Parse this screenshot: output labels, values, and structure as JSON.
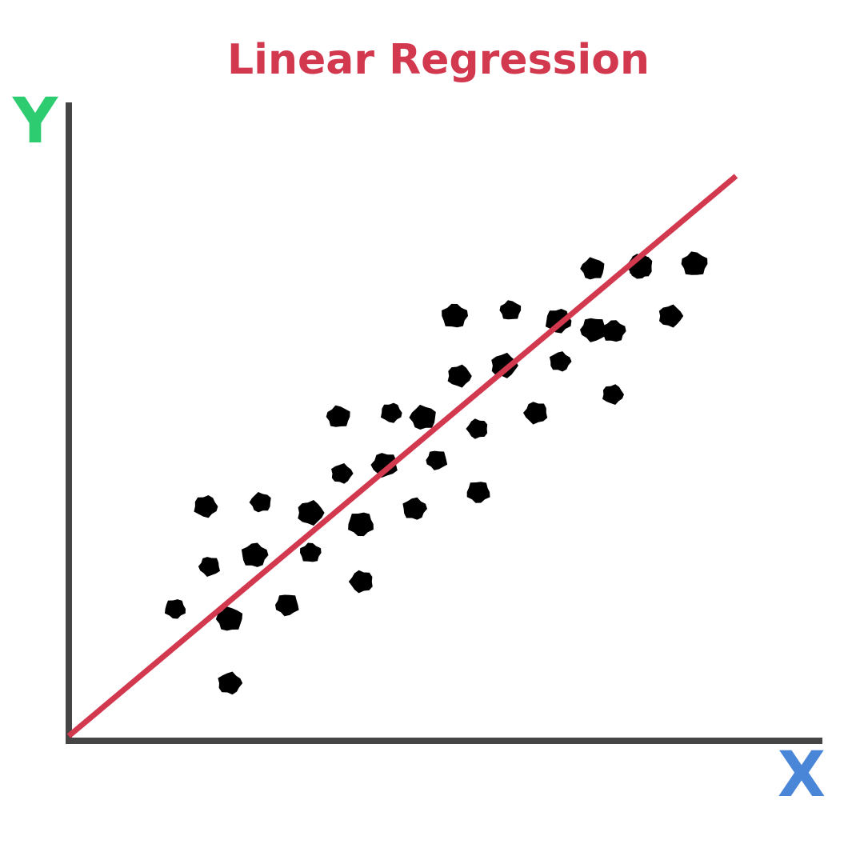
{
  "colors": {
    "title": "#d2384e",
    "regression_line": "#d2384e",
    "axis": "#454545",
    "x_label": "#4a86d8",
    "y_label": "#2ecc71",
    "points": "#000000"
  },
  "chart_data": {
    "type": "scatter",
    "title": "Linear Regression",
    "xlabel": "X",
    "ylabel": "Y",
    "xlim": [
      0,
      1000
    ],
    "ylim": [
      0,
      800
    ],
    "grid": false,
    "legend": "none",
    "regression_line": {
      "start": [
        0,
        6
      ],
      "end": [
        834,
        706
      ]
    },
    "points": [
      {
        "x": 133,
        "y": 165
      },
      {
        "x": 201,
        "y": 72
      },
      {
        "x": 201,
        "y": 152
      },
      {
        "x": 176,
        "y": 218
      },
      {
        "x": 171,
        "y": 293
      },
      {
        "x": 232,
        "y": 232
      },
      {
        "x": 240,
        "y": 298
      },
      {
        "x": 273,
        "y": 170
      },
      {
        "x": 302,
        "y": 285
      },
      {
        "x": 302,
        "y": 235
      },
      {
        "x": 366,
        "y": 199
      },
      {
        "x": 365,
        "y": 271
      },
      {
        "x": 341,
        "y": 334
      },
      {
        "x": 337,
        "y": 405
      },
      {
        "x": 395,
        "y": 345
      },
      {
        "x": 403,
        "y": 410
      },
      {
        "x": 432,
        "y": 290
      },
      {
        "x": 443,
        "y": 404
      },
      {
        "x": 460,
        "y": 351
      },
      {
        "x": 488,
        "y": 456
      },
      {
        "x": 482,
        "y": 531
      },
      {
        "x": 511,
        "y": 390
      },
      {
        "x": 512,
        "y": 311
      },
      {
        "x": 544,
        "y": 469
      },
      {
        "x": 552,
        "y": 538
      },
      {
        "x": 584,
        "y": 410
      },
      {
        "x": 612,
        "y": 525
      },
      {
        "x": 614,
        "y": 474
      },
      {
        "x": 655,
        "y": 590
      },
      {
        "x": 656,
        "y": 514
      },
      {
        "x": 680,
        "y": 433
      },
      {
        "x": 681,
        "y": 512
      },
      {
        "x": 714,
        "y": 593
      },
      {
        "x": 714,
        "y": 590
      },
      {
        "x": 752,
        "y": 531
      },
      {
        "x": 782,
        "y": 596
      },
      {
        "x": 713,
        "y": 596
      }
    ]
  }
}
